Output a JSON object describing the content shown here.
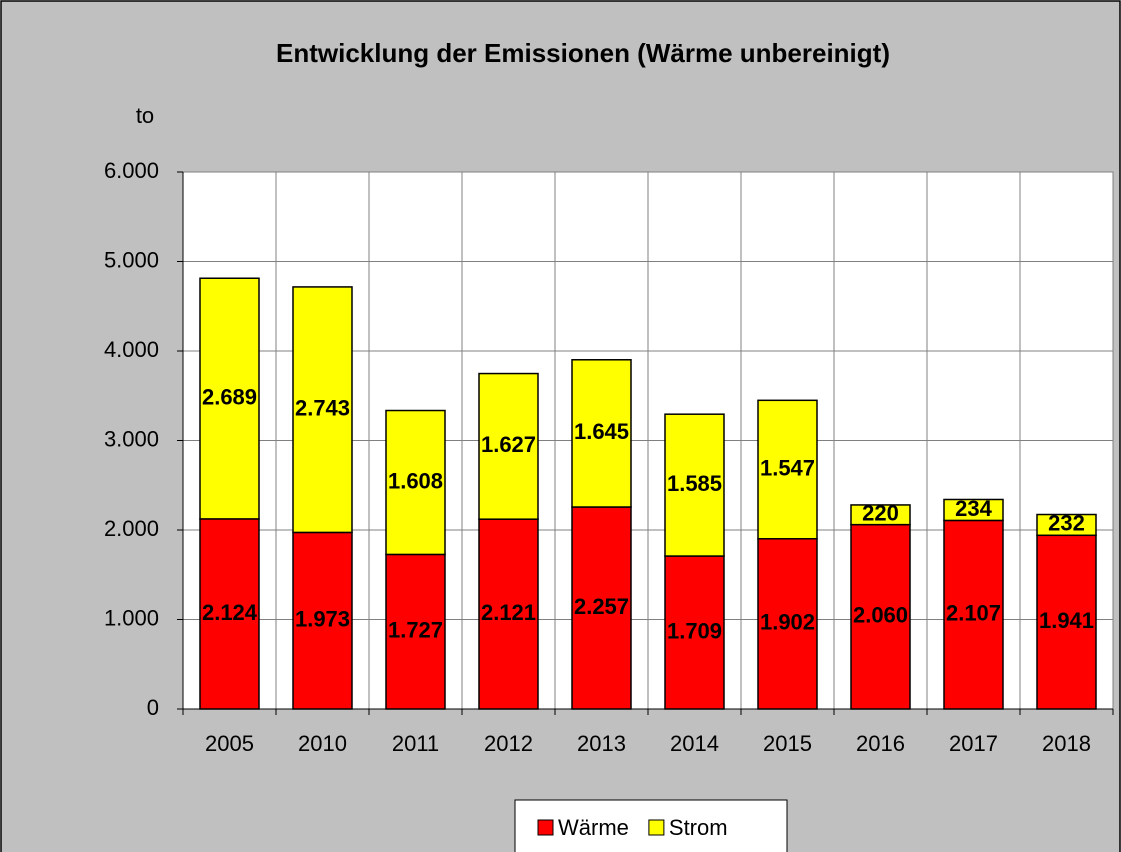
{
  "chart_data": {
    "type": "stacked_bar",
    "title": "Entwicklung der Emissionen (Wärme unbereinigt)",
    "y_label": "to",
    "categories": [
      "2005",
      "2010",
      "2011",
      "2012",
      "2013",
      "2014",
      "2015",
      "2016",
      "2017",
      "2018"
    ],
    "series": [
      {
        "name": "Wärme",
        "color": "#ff0000",
        "values": [
          2124,
          1973,
          1727,
          2121,
          2257,
          1709,
          1902,
          2060,
          2107,
          1941
        ],
        "value_labels": [
          "2.124",
          "1.973",
          "1.727",
          "2.121",
          "2.257",
          "1.709",
          "1.902",
          "2.060",
          "2.107",
          "1.941"
        ]
      },
      {
        "name": "Strom",
        "color": "#ffff00",
        "values": [
          2689,
          2743,
          1608,
          1627,
          1645,
          1585,
          1547,
          220,
          234,
          232
        ],
        "value_labels": [
          "2.689",
          "2.743",
          "1.608",
          "1.627",
          "1.645",
          "1.585",
          "1.547",
          "220",
          "234",
          "232"
        ]
      }
    ],
    "ylim": [
      0,
      6000
    ],
    "yticks": [
      0,
      {
        "value": 1000,
        "label": "1.000"
      },
      {
        "value": 2000,
        "label": "2.000"
      },
      {
        "value": 3000,
        "label": "3.000"
      },
      {
        "value": 4000,
        "label": "4.000"
      },
      {
        "value": 5000,
        "label": "5.000"
      },
      {
        "value": 6000,
        "label": "6.000"
      }
    ],
    "grid": true,
    "legend": "bottom"
  }
}
